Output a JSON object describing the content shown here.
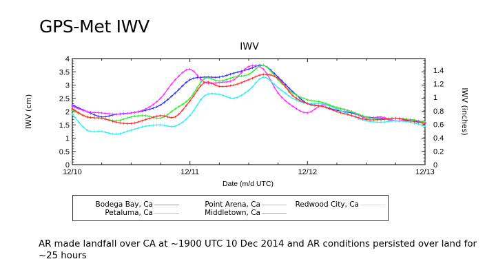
{
  "slide": {
    "title": "GPS-Met IWV",
    "caption": "AR made landfall over CA at ~1900 UTC 10 Dec 2014 and AR conditions persisted over land for ~25 hours"
  },
  "chart_data": {
    "type": "line",
    "title": "IWV",
    "xlabel": "Date (m/d UTC)",
    "ylabel": "IWV (cm)",
    "y2label": "IWV (inches)",
    "x_unit": "hours since 12/10 00 UTC",
    "xlim": [
      0,
      72
    ],
    "ylim": [
      0,
      4
    ],
    "y2lim": [
      0,
      1.575
    ],
    "xticks": [
      {
        "value": 0,
        "label": "12/10"
      },
      {
        "value": 24,
        "label": "12/11"
      },
      {
        "value": 48,
        "label": "12/12"
      },
      {
        "value": 72,
        "label": "12/13"
      }
    ],
    "yticks": [
      0,
      0.5,
      1,
      1.5,
      2,
      2.5,
      3,
      3.5,
      4
    ],
    "yticklabels": [
      "0",
      "0.5",
      "1",
      "1.5",
      "2",
      "2.5",
      "3",
      "3.5",
      "4"
    ],
    "y2ticks": [
      0,
      0.2,
      0.4,
      0.6,
      0.8,
      1,
      1.2,
      1.4
    ],
    "y2ticklabels": [
      "0",
      "0.2",
      "0.4",
      "0.6",
      "0.8",
      "1",
      "1.2",
      "1.4"
    ],
    "grid": false,
    "legend_position": "below",
    "x": [
      0,
      3,
      6,
      9,
      12,
      15,
      18,
      21,
      24,
      27,
      30,
      33,
      36,
      39,
      42,
      45,
      48,
      51,
      54,
      57,
      60,
      63,
      66,
      69,
      72
    ],
    "series": [
      {
        "name": "Bodega Bay, Ca",
        "color": "#3333ff",
        "values": [
          2.25,
          2.0,
          1.8,
          1.9,
          1.95,
          2.05,
          2.25,
          2.7,
          3.2,
          3.3,
          3.3,
          3.45,
          3.6,
          3.75,
          3.3,
          2.75,
          2.3,
          2.2,
          2.05,
          1.95,
          1.8,
          1.75,
          1.65,
          1.65,
          1.6
        ]
      },
      {
        "name": "Point Arena, Ca",
        "color": "#ff33ff",
        "values": [
          2.2,
          2.0,
          1.95,
          1.9,
          1.95,
          2.1,
          2.5,
          3.2,
          3.6,
          3.1,
          3.1,
          3.2,
          3.7,
          3.6,
          2.7,
          2.2,
          1.95,
          2.25,
          2.15,
          2.0,
          1.75,
          1.8,
          1.65,
          1.7,
          1.6
        ]
      },
      {
        "name": "Redwood City, Ca",
        "color": "#33eeee",
        "values": [
          1.9,
          1.3,
          1.25,
          1.15,
          1.3,
          1.45,
          1.5,
          1.45,
          1.85,
          2.6,
          2.65,
          2.5,
          2.8,
          3.3,
          2.9,
          2.5,
          2.3,
          2.3,
          2.1,
          1.85,
          1.65,
          1.6,
          1.65,
          1.6,
          1.45
        ]
      },
      {
        "name": "Petaluma, Ca",
        "color": "#33ee33",
        "values": [
          2.05,
          1.8,
          1.75,
          1.65,
          1.8,
          1.85,
          1.75,
          2.1,
          2.5,
          3.25,
          3.15,
          3.3,
          3.4,
          3.75,
          3.2,
          2.7,
          2.45,
          2.35,
          2.15,
          2.0,
          1.8,
          1.7,
          1.75,
          1.7,
          1.6
        ]
      },
      {
        "name": "Middletown, Ca",
        "color": "#ff3333",
        "values": [
          2.1,
          1.8,
          1.75,
          1.6,
          1.55,
          1.7,
          1.85,
          1.8,
          2.4,
          3.1,
          2.95,
          3.0,
          3.2,
          3.4,
          3.25,
          2.6,
          2.3,
          2.2,
          2.0,
          1.85,
          1.7,
          1.7,
          1.75,
          1.65,
          1.55
        ]
      }
    ],
    "legend": {
      "col1": [
        "Bodega Bay, Ca",
        "Petaluma, Ca"
      ],
      "col2": [
        "Point Arena, Ca",
        "Middletown, Ca"
      ],
      "col3": [
        "Redwood City, Ca"
      ]
    }
  }
}
